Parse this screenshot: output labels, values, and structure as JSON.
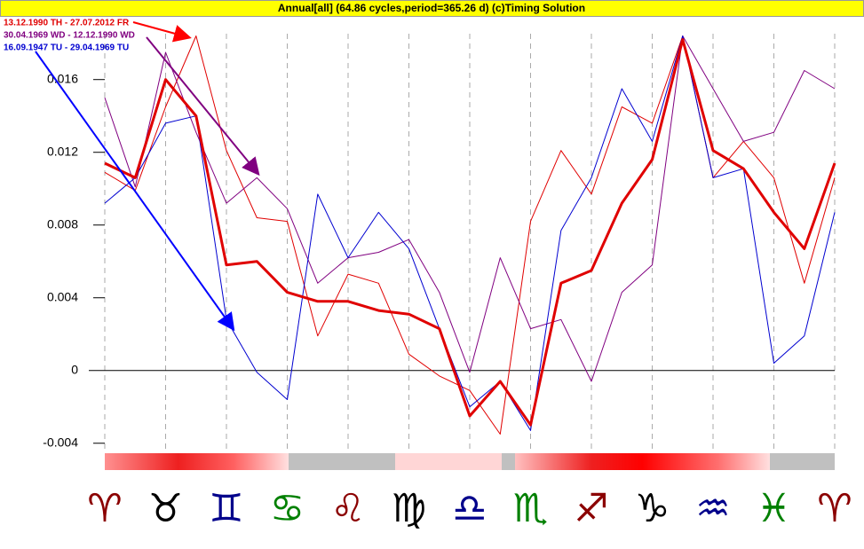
{
  "chart_data": {
    "type": "line",
    "title": "Annual[all]  (64.86 cycles,period=365.26 d)   (c)Timing Solution",
    "x": [
      0,
      15,
      30,
      45,
      60,
      75,
      90,
      105,
      120,
      135,
      150,
      165,
      180,
      195,
      210,
      225,
      240,
      255,
      270,
      285,
      300,
      315,
      330,
      345,
      360
    ],
    "xlim": [
      0,
      360
    ],
    "xticks": [
      {
        "value": 0,
        "label": "♈"
      },
      {
        "value": 30,
        "label": "♉"
      },
      {
        "value": 60,
        "label": "♊"
      },
      {
        "value": 90,
        "label": "♋"
      },
      {
        "value": 120,
        "label": "♌"
      },
      {
        "value": 150,
        "label": "♍"
      },
      {
        "value": 180,
        "label": "♎"
      },
      {
        "value": 210,
        "label": "♏"
      },
      {
        "value": 240,
        "label": "♐"
      },
      {
        "value": 270,
        "label": "♑"
      },
      {
        "value": 300,
        "label": "♒"
      },
      {
        "value": 330,
        "label": "♓"
      },
      {
        "value": 360,
        "label": "♈"
      }
    ],
    "xtick_colors": [
      "#8b0000",
      "#000000",
      "#00008b",
      "#008000",
      "#8b0000",
      "#000000",
      "#00008b",
      "#008000",
      "#8b0000",
      "#000000",
      "#00008b",
      "#008000",
      "#8b0000"
    ],
    "ylim": [
      -0.0045,
      0.0194
    ],
    "yticks": [
      -0.004,
      0,
      0.004,
      0.008,
      0.012,
      0.016
    ],
    "series": [
      {
        "name": "13.12.1990 TH - 27.07.2012 FR",
        "color": "#e00000",
        "width": 1,
        "values": [
          0.0109,
          0.0099,
          0.0145,
          0.0184,
          0.0121,
          0.0084,
          0.0082,
          0.0019,
          0.0053,
          0.0048,
          0.0009,
          -0.0003,
          -0.0011,
          -0.0035,
          0.0082,
          0.0121,
          0.0097,
          0.0145,
          0.0136,
          0.0184,
          0.0106,
          0.0126,
          0.0106,
          0.0048,
          0.0106
        ]
      },
      {
        "name": "30.04.1969 WD - 12.12.1990 WD",
        "color": "#800080",
        "width": 1,
        "values": [
          0.015,
          0.0101,
          0.0175,
          0.0131,
          0.0092,
          0.0106,
          0.0089,
          0.0048,
          0.0062,
          0.0065,
          0.0072,
          0.0043,
          -0.0001,
          0.0062,
          0.0023,
          0.0028,
          -0.0006,
          0.0043,
          0.0058,
          0.0184,
          0.0155,
          0.0126,
          0.0131,
          0.0165,
          0.0155
        ]
      },
      {
        "name": "16.09.1947 TU - 29.04.1969 TU",
        "color": "#0000d0",
        "width": 1,
        "values": [
          0.0092,
          0.0106,
          0.0136,
          0.014,
          0.0028,
          -0.0001,
          -0.0016,
          0.0097,
          0.0062,
          0.0087,
          0.0067,
          0.0023,
          -0.002,
          -0.0006,
          -0.0033,
          0.0077,
          0.0106,
          0.0155,
          0.0126,
          0.0184,
          0.0106,
          0.0111,
          0.0004,
          0.0019,
          0.0087
        ]
      },
      {
        "color": "#e00000",
        "width": 3,
        "values": [
          0.0114,
          0.0106,
          0.016,
          0.014,
          0.0058,
          0.006,
          0.0043,
          0.0038,
          0.0038,
          0.0033,
          0.0031,
          0.0023,
          -0.0025,
          -0.0006,
          -0.003,
          0.0048,
          0.0055,
          0.0092,
          0.0116,
          0.0182,
          0.0121,
          0.0111,
          0.0087,
          0.0067,
          0.0114
        ]
      }
    ],
    "legend": "top-left"
  }
}
